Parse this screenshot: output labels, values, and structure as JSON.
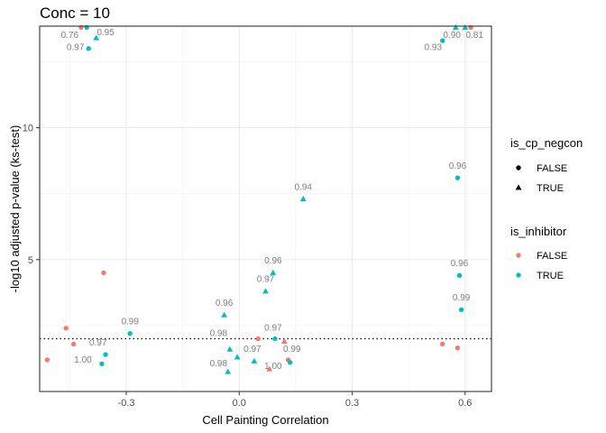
{
  "chart_data": {
    "type": "scatter",
    "title": "Conc = 10",
    "xlabel": "Cell Painting Correlation",
    "ylabel": "-log10 adjusted p-value (ks-test)",
    "xlim": [
      -0.53,
      0.67
    ],
    "ylim": [
      0,
      13.85
    ],
    "x_ticks": [
      -0.3,
      0.0,
      0.3,
      0.6
    ],
    "x_tick_labels": [
      "-0.3",
      "0.0",
      "0.3",
      "0.6"
    ],
    "y_ticks": [
      5,
      10
    ],
    "y_tick_labels": [
      "5",
      "10"
    ],
    "grid": true,
    "hline": 2.0,
    "legend_position": "right",
    "colors": {
      "FALSE": "#f8766d",
      "TRUE": "#00bfc4"
    },
    "legends": [
      {
        "title": "is_cp_negcon",
        "entries": [
          {
            "label": "FALSE",
            "shape": "circle"
          },
          {
            "label": "TRUE",
            "shape": "triangle"
          }
        ]
      },
      {
        "title": "is_inhibitor",
        "entries": [
          {
            "label": "FALSE",
            "color": "#f8766d"
          },
          {
            "label": "TRUE",
            "color": "#00bfc4"
          }
        ]
      }
    ],
    "points": [
      {
        "x": -0.42,
        "y": 13.8,
        "negcon": false,
        "inhibitor": false
      },
      {
        "x": -0.405,
        "y": 13.8,
        "negcon": false,
        "inhibitor": true
      },
      {
        "x": -0.38,
        "y": 13.4,
        "negcon": true,
        "inhibitor": true
      },
      {
        "x": -0.4,
        "y": 13.0,
        "negcon": false,
        "inhibitor": true
      },
      {
        "x": 0.575,
        "y": 13.8,
        "negcon": true,
        "inhibitor": true
      },
      {
        "x": 0.6,
        "y": 13.8,
        "negcon": true,
        "inhibitor": true
      },
      {
        "x": 0.615,
        "y": 13.8,
        "negcon": false,
        "inhibitor": false
      },
      {
        "x": 0.54,
        "y": 13.3,
        "negcon": false,
        "inhibitor": true
      },
      {
        "x": 0.58,
        "y": 8.1,
        "negcon": false,
        "inhibitor": true
      },
      {
        "x": 0.17,
        "y": 7.3,
        "negcon": true,
        "inhibitor": true
      },
      {
        "x": 0.09,
        "y": 4.5,
        "negcon": true,
        "inhibitor": true
      },
      {
        "x": 0.585,
        "y": 4.4,
        "negcon": false,
        "inhibitor": true
      },
      {
        "x": -0.36,
        "y": 4.5,
        "negcon": false,
        "inhibitor": false
      },
      {
        "x": 0.07,
        "y": 3.8,
        "negcon": true,
        "inhibitor": true
      },
      {
        "x": 0.59,
        "y": 3.1,
        "negcon": false,
        "inhibitor": true
      },
      {
        "x": -0.04,
        "y": 2.9,
        "negcon": true,
        "inhibitor": true
      },
      {
        "x": -0.46,
        "y": 2.4,
        "negcon": false,
        "inhibitor": false
      },
      {
        "x": -0.29,
        "y": 2.2,
        "negcon": false,
        "inhibitor": true
      },
      {
        "x": 0.05,
        "y": 2.0,
        "negcon": false,
        "inhibitor": false
      },
      {
        "x": 0.095,
        "y": 2.0,
        "negcon": false,
        "inhibitor": true
      },
      {
        "x": 0.12,
        "y": 1.9,
        "negcon": true,
        "inhibitor": false
      },
      {
        "x": -0.44,
        "y": 1.8,
        "negcon": false,
        "inhibitor": false
      },
      {
        "x": 0.54,
        "y": 1.8,
        "negcon": false,
        "inhibitor": false
      },
      {
        "x": 0.58,
        "y": 1.65,
        "negcon": false,
        "inhibitor": false
      },
      {
        "x": -0.025,
        "y": 1.6,
        "negcon": true,
        "inhibitor": true
      },
      {
        "x": -0.355,
        "y": 1.4,
        "negcon": false,
        "inhibitor": true
      },
      {
        "x": -0.51,
        "y": 1.2,
        "negcon": false,
        "inhibitor": false
      },
      {
        "x": 0.13,
        "y": 1.2,
        "negcon": false,
        "inhibitor": false
      },
      {
        "x": 0.135,
        "y": 1.1,
        "negcon": false,
        "inhibitor": true
      },
      {
        "x": -0.365,
        "y": 1.05,
        "negcon": false,
        "inhibitor": true
      },
      {
        "x": 0.04,
        "y": 1.15,
        "negcon": true,
        "inhibitor": true
      },
      {
        "x": -0.005,
        "y": 1.3,
        "negcon": true,
        "inhibitor": true
      },
      {
        "x": 0.08,
        "y": 0.85,
        "negcon": true,
        "inhibitor": false
      },
      {
        "x": -0.03,
        "y": 0.75,
        "negcon": true,
        "inhibitor": true
      }
    ],
    "annotations": [
      {
        "label": "0.76",
        "x": -0.45,
        "y": 13.4
      },
      {
        "label": "0.95",
        "x": -0.355,
        "y": 13.5
      },
      {
        "label": "0.97",
        "x": -0.435,
        "y": 12.95
      },
      {
        "label": "0.90",
        "x": 0.565,
        "y": 13.4
      },
      {
        "label": "0.81",
        "x": 0.625,
        "y": 13.4
      },
      {
        "label": "0.93",
        "x": 0.515,
        "y": 12.95
      },
      {
        "label": "0.96",
        "x": 0.58,
        "y": 8.45
      },
      {
        "label": "0.94",
        "x": 0.17,
        "y": 7.65
      },
      {
        "label": "0.96",
        "x": 0.09,
        "y": 4.85
      },
      {
        "label": "0.96",
        "x": 0.585,
        "y": 4.75
      },
      {
        "label": "0.97",
        "x": 0.07,
        "y": 4.15
      },
      {
        "label": "0.99",
        "x": 0.59,
        "y": 3.45
      },
      {
        "label": "0.96",
        "x": -0.04,
        "y": 3.25
      },
      {
        "label": "0.99",
        "x": -0.29,
        "y": 2.55
      },
      {
        "label": "0.98",
        "x": -0.055,
        "y": 2.1
      },
      {
        "label": "0.97",
        "x": 0.09,
        "y": 2.3
      },
      {
        "label": "0.97",
        "x": -0.375,
        "y": 1.75
      },
      {
        "label": "0.99",
        "x": 0.14,
        "y": 1.5
      },
      {
        "label": "0.97",
        "x": 0.035,
        "y": 1.5
      },
      {
        "label": "1.00",
        "x": -0.415,
        "y": 1.1
      },
      {
        "label": "0.98",
        "x": -0.055,
        "y": 0.95
      },
      {
        "label": "1.00",
        "x": 0.09,
        "y": 0.85
      }
    ]
  }
}
